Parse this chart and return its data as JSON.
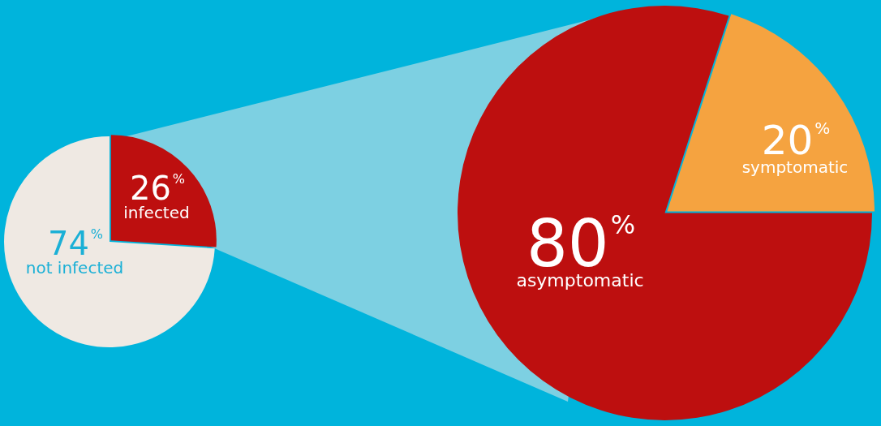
{
  "chart_data": [
    {
      "type": "pie",
      "categories": [
        "infected",
        "not infected"
      ],
      "values": [
        26,
        74
      ],
      "colors": [
        "#bd0f0f",
        "#efe9e3"
      ],
      "value_labels": [
        "26%",
        "74%"
      ]
    },
    {
      "type": "pie",
      "categories": [
        "symptomatic",
        "asymptomatic"
      ],
      "values": [
        20,
        80
      ],
      "colors": [
        "#f5a340",
        "#bd0f0f"
      ],
      "value_labels": [
        "20%",
        "80%"
      ]
    }
  ]
}
